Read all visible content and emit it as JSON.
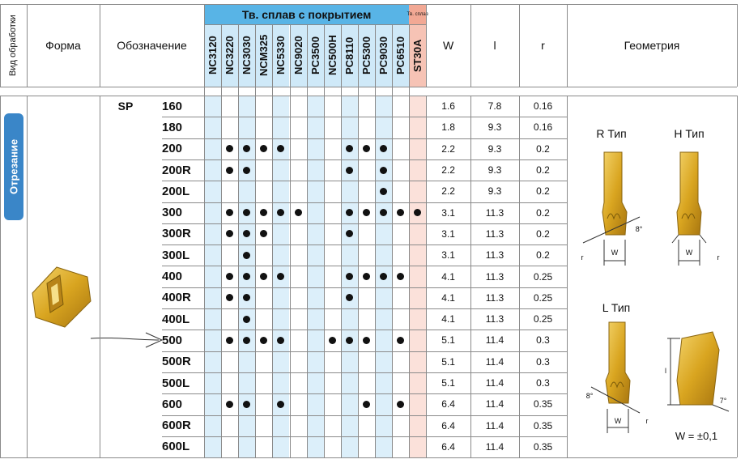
{
  "header": {
    "process": "Вид обработки",
    "shape": "Форма",
    "designation": "Обозначение",
    "coated_group": "Тв. сплав с покрытием",
    "uncoated_group": "Тв. сплав",
    "coated_grades": [
      "NC3120",
      "NC3220",
      "NC3030",
      "NCM325",
      "NC5330",
      "NC9020",
      "PC3500",
      "NC500H",
      "PC8110",
      "PC5300",
      "PC9030",
      "PC6510"
    ],
    "uncoated_grades": [
      "ST30A"
    ],
    "W": "W",
    "l": "l",
    "r": "r",
    "geometry": "Геометрия"
  },
  "process": "Отрезание",
  "prefix": "SP",
  "rows": [
    {
      "code": "160",
      "W": 1.6,
      "l": 7.8,
      "r": 0.16
    },
    {
      "code": "180",
      "W": 1.8,
      "l": 9.3,
      "r": 0.16
    },
    {
      "code": "200",
      "grades": [
        "NC3220",
        "NC3030",
        "NCM325",
        "NC5330",
        "PC8110",
        "PC5300",
        "PC9030"
      ],
      "W": 2.2,
      "l": 9.3,
      "r": 0.2
    },
    {
      "code": "200R",
      "grades": [
        "NC3220",
        "NC3030",
        "PC8110",
        "PC9030"
      ],
      "W": 2.2,
      "l": 9.3,
      "r": 0.2
    },
    {
      "code": "200L",
      "grades": [
        "PC9030"
      ],
      "W": 2.2,
      "l": 9.3,
      "r": 0.2
    },
    {
      "code": "300",
      "grades": [
        "NC3220",
        "NC3030",
        "NCM325",
        "NC5330",
        "NC9020",
        "PC8110",
        "PC5300",
        "PC9030",
        "PC6510",
        "ST30A"
      ],
      "W": 3.1,
      "l": 11.3,
      "r": 0.2
    },
    {
      "code": "300R",
      "grades": [
        "NC3220",
        "NC3030",
        "NCM325",
        "PC8110"
      ],
      "W": 3.1,
      "l": 11.3,
      "r": 0.2
    },
    {
      "code": "300L",
      "grades": [
        "NC3030"
      ],
      "W": 3.1,
      "l": 11.3,
      "r": 0.2
    },
    {
      "code": "400",
      "grades": [
        "NC3220",
        "NC3030",
        "NCM325",
        "NC5330",
        "PC8110",
        "PC5300",
        "PC9030",
        "PC6510"
      ],
      "W": 4.1,
      "l": 11.3,
      "r": 0.25
    },
    {
      "code": "400R",
      "grades": [
        "NC3220",
        "NC3030",
        "PC8110"
      ],
      "W": 4.1,
      "l": 11.3,
      "r": 0.25
    },
    {
      "code": "400L",
      "grades": [
        "NC3030"
      ],
      "W": 4.1,
      "l": 11.3,
      "r": 0.25
    },
    {
      "code": "500",
      "grades": [
        "NC3220",
        "NC3030",
        "NCM325",
        "NC5330",
        "NC500H",
        "PC8110",
        "PC5300",
        "PC6510"
      ],
      "W": 5.1,
      "l": 11.4,
      "r": 0.3
    },
    {
      "code": "500R",
      "W": 5.1,
      "l": 11.4,
      "r": 0.3
    },
    {
      "code": "500L",
      "W": 5.1,
      "l": 11.4,
      "r": 0.3
    },
    {
      "code": "600",
      "grades": [
        "NC3220",
        "NC3030",
        "NC5330",
        "PC5300",
        "PC6510"
      ],
      "W": 6.4,
      "l": 11.4,
      "r": 0.35
    },
    {
      "code": "600R",
      "W": 6.4,
      "l": 11.4,
      "r": 0.35
    },
    {
      "code": "600L",
      "W": 6.4,
      "l": 11.4,
      "r": 0.35
    }
  ],
  "geometry": {
    "r_type": "R Тип",
    "h_type": "H Тип",
    "l_type": "L Тип",
    "tolerance": "W = ±0,1",
    "angle_8": "8°",
    "angle_7": "7°",
    "label_r": "r",
    "label_w": "W",
    "label_l": "l"
  }
}
